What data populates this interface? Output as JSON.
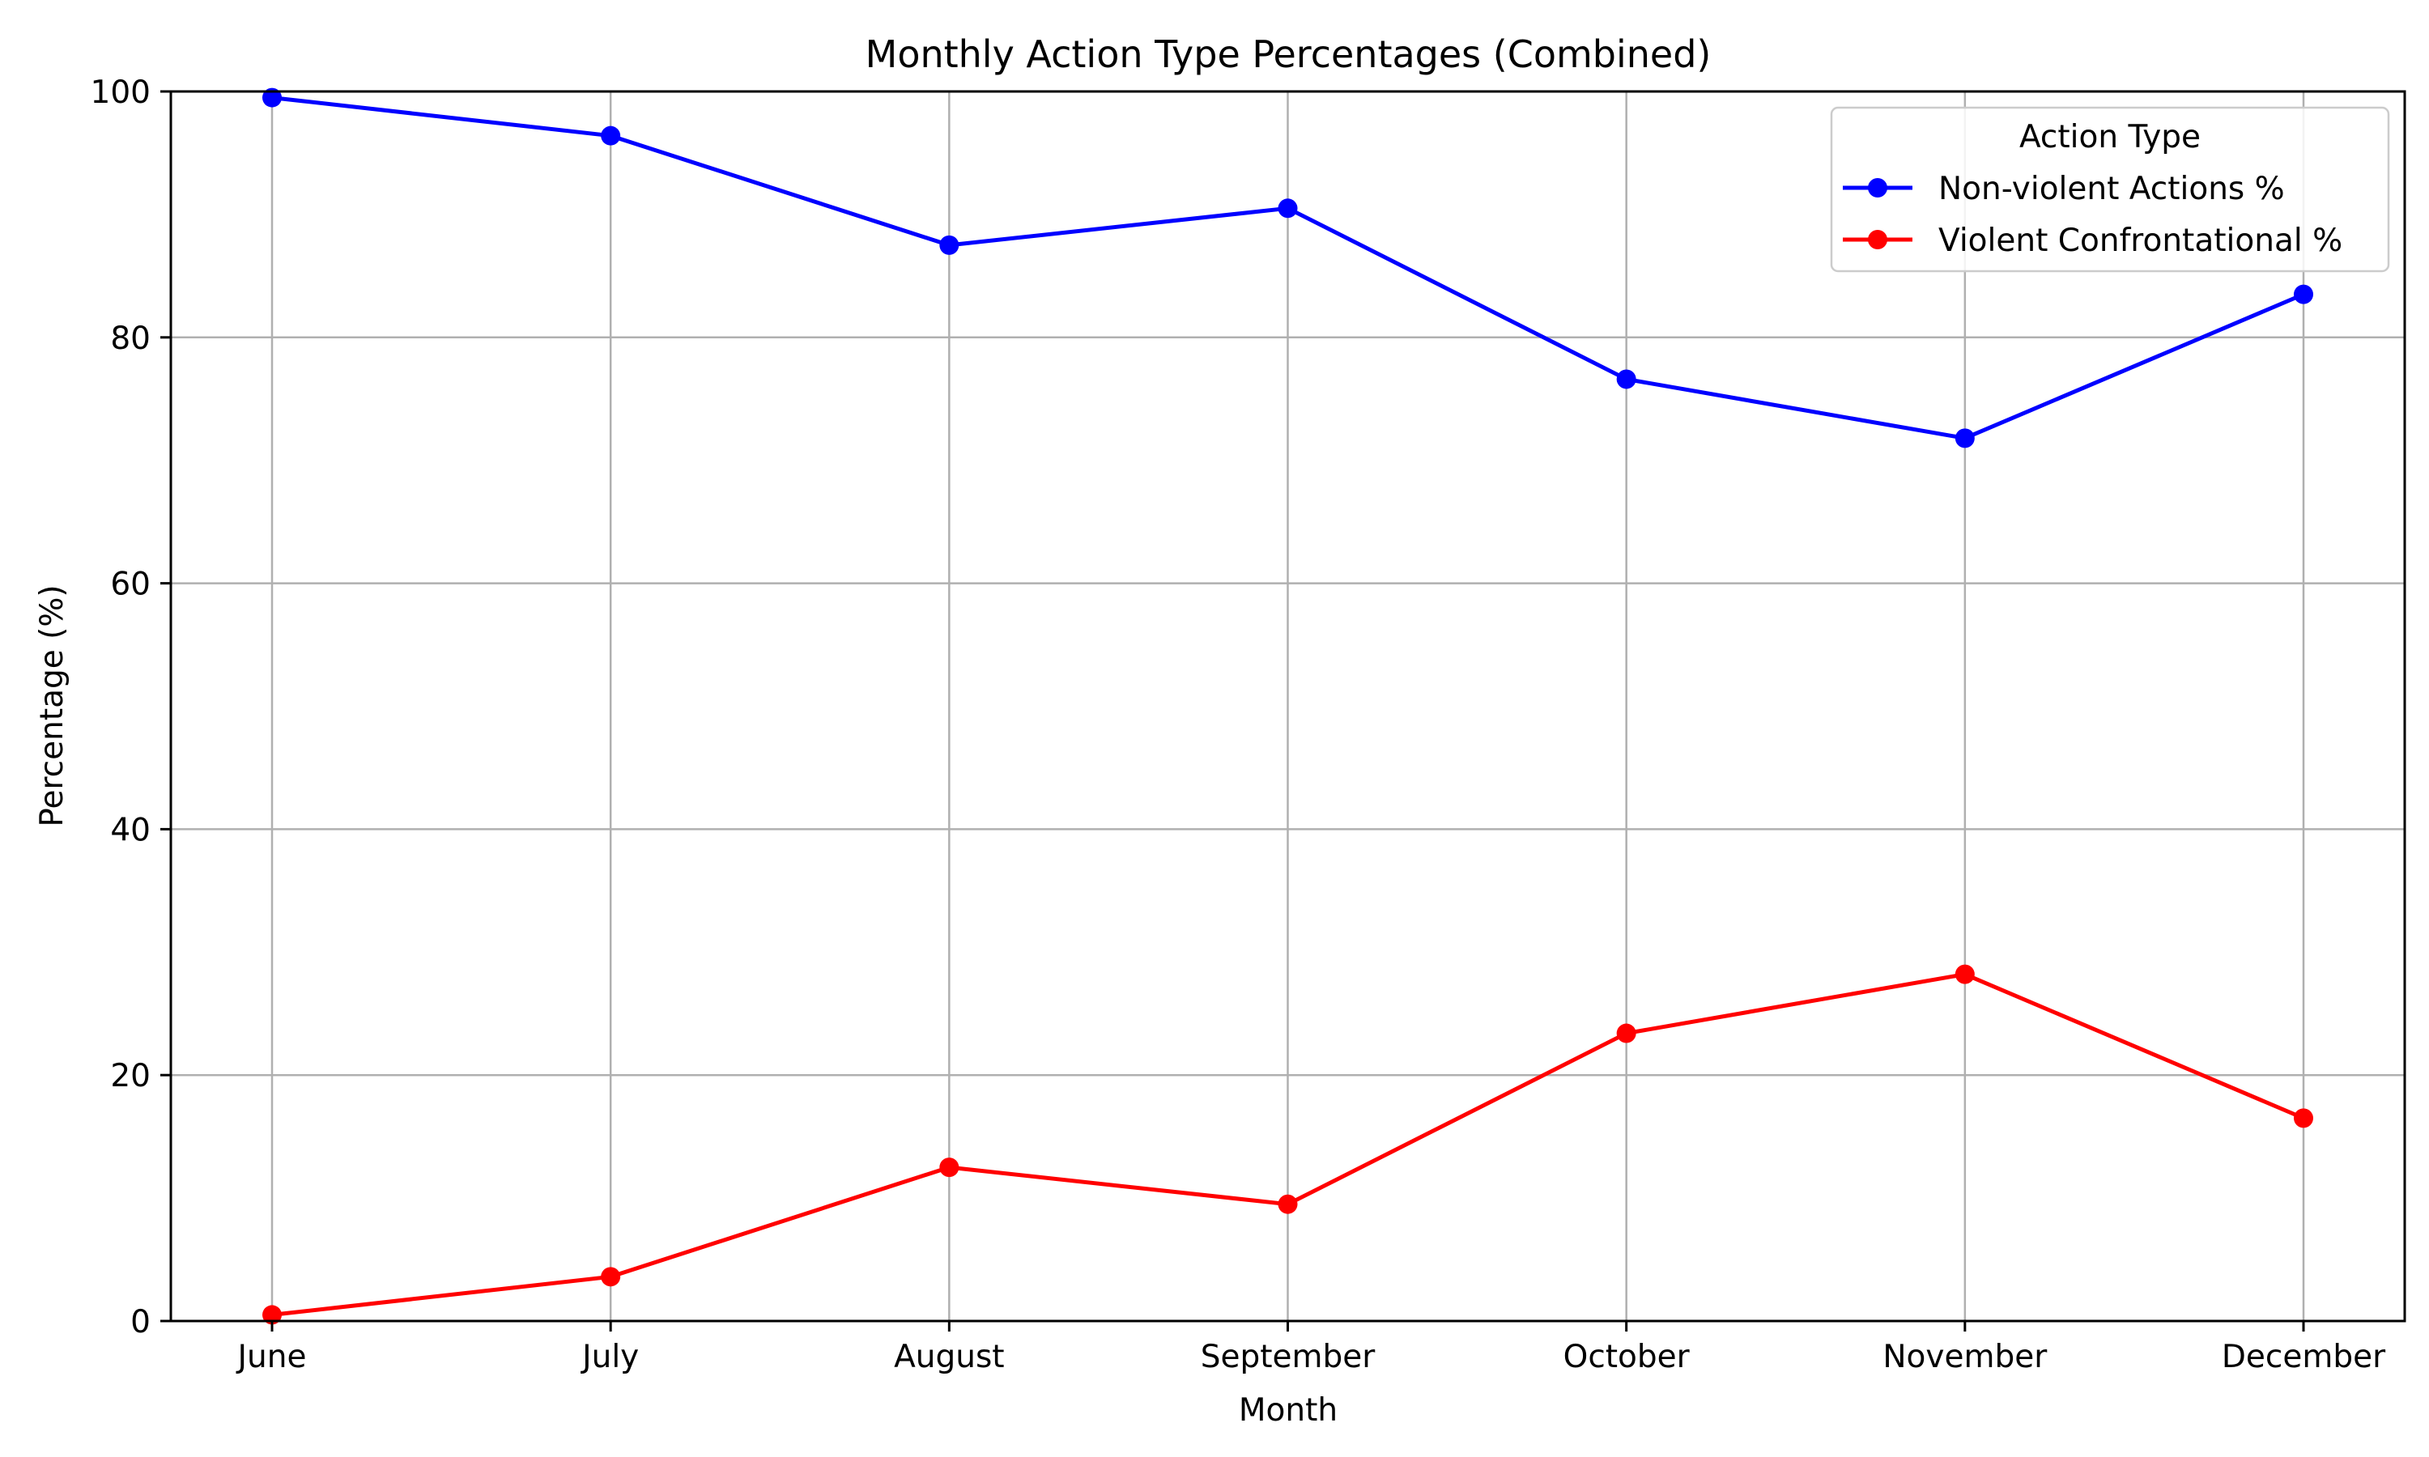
{
  "chart_data": {
    "type": "line",
    "title": "Monthly Action Type Percentages (Combined)",
    "xlabel": "Month",
    "ylabel": "Percentage (%)",
    "categories": [
      "June",
      "July",
      "August",
      "September",
      "October",
      "November",
      "December"
    ],
    "ylim": [
      0,
      100
    ],
    "yticks": [
      0,
      20,
      40,
      60,
      80,
      100
    ],
    "grid": true,
    "legend": {
      "title": "Action Type",
      "placement": "top-right"
    },
    "series": [
      {
        "name": "Non-violent Actions %",
        "color": "#0000ff",
        "marker": "circle",
        "values": [
          99.5,
          96.4,
          87.5,
          90.5,
          76.6,
          71.8,
          83.5
        ]
      },
      {
        "name": "Violent Confrontational %",
        "color": "#ff0000",
        "marker": "circle",
        "values": [
          0.5,
          3.6,
          12.5,
          9.5,
          23.4,
          28.2,
          16.5
        ]
      }
    ]
  }
}
